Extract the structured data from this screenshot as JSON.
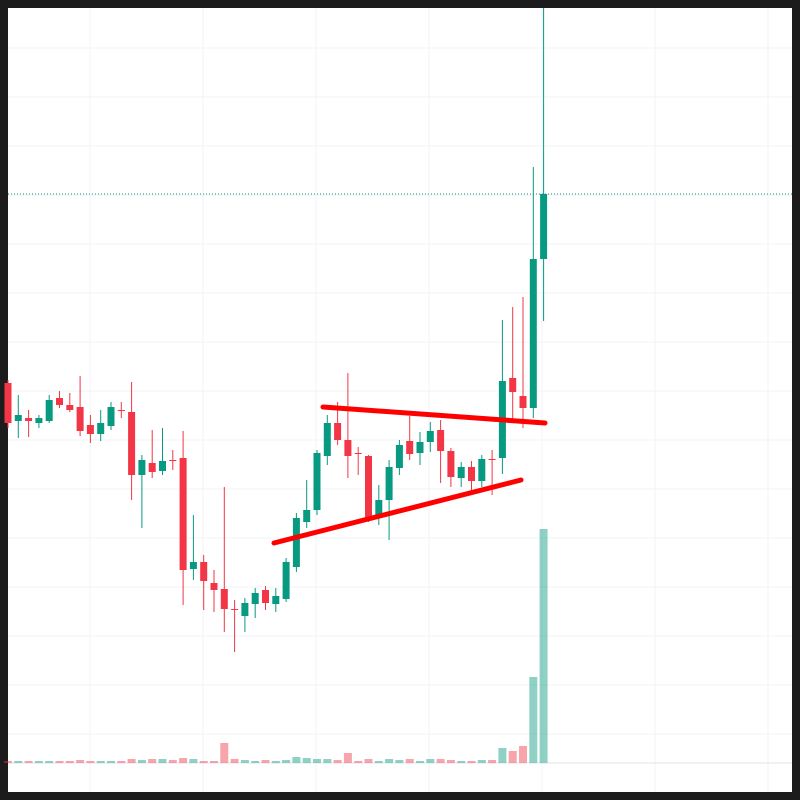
{
  "chart_data": {
    "type": "candlestick",
    "up_color": "#089981",
    "down_color": "#f23645",
    "ylim": [
      8,
      792
    ],
    "volume_ylim": [
      0,
      755
    ],
    "grid": true,
    "open": [
      417,
      379,
      382,
      377,
      379,
      402,
      395,
      393,
      375,
      366,
      374,
      390,
      388,
      325,
      337,
      329,
      340,
      342,
      231,
      238,
      217,
      211,
      191,
      184,
      196,
      210,
      196,
      201,
      233,
      278,
      290,
      344,
      377,
      360,
      347,
      344,
      285,
      300,
      332,
      359,
      347,
      358,
      370,
      349,
      322,
      333,
      319,
      341,
      342,
      422,
      404,
      392,
      541
    ],
    "high": [
      420,
      405,
      390,
      385,
      405,
      409,
      407,
      424,
      385,
      390,
      398,
      398,
      418,
      345,
      370,
      372,
      350,
      369,
      285,
      245,
      230,
      313,
      200,
      202,
      212,
      214,
      212,
      242,
      287,
      320,
      350,
      385,
      398,
      427,
      353,
      345,
      315,
      340,
      360,
      384,
      368,
      378,
      380,
      352,
      338,
      339,
      345,
      350,
      480,
      493,
      503,
      633,
      792
    ],
    "low": [
      372,
      362,
      363,
      372,
      377,
      392,
      388,
      364,
      357,
      359,
      370,
      382,
      300,
      272,
      322,
      325,
      330,
      195,
      220,
      190,
      188,
      168,
      148,
      168,
      182,
      190,
      188,
      198,
      228,
      272,
      285,
      335,
      355,
      322,
      325,
      278,
      275,
      260,
      325,
      340,
      335,
      348,
      317,
      313,
      313,
      308,
      313,
      305,
      326,
      380,
      372,
      382,
      479
    ],
    "close": [
      377,
      385,
      379,
      382,
      400,
      395,
      390,
      369,
      366,
      377,
      393,
      389,
      325,
      340,
      328,
      339,
      339,
      230,
      238,
      219,
      210,
      191,
      190,
      197,
      207,
      197,
      204,
      238,
      282,
      290,
      347,
      377,
      360,
      344,
      346,
      283,
      300,
      333,
      355,
      346,
      358,
      369,
      349,
      323,
      333,
      319,
      341,
      340,
      419,
      408,
      392,
      541,
      606
    ],
    "volume": [
      2,
      2,
      2,
      2,
      2,
      2,
      2,
      3,
      2,
      2,
      2,
      2,
      4,
      3,
      4,
      4,
      3,
      5,
      4,
      2,
      2,
      20,
      4,
      3,
      2,
      3,
      2,
      3,
      6,
      5,
      4,
      4,
      3,
      10,
      2,
      4,
      2,
      4,
      3,
      4,
      2,
      4,
      4,
      3,
      2,
      2,
      3,
      3,
      15,
      12,
      17,
      86,
      234
    ]
  }
}
